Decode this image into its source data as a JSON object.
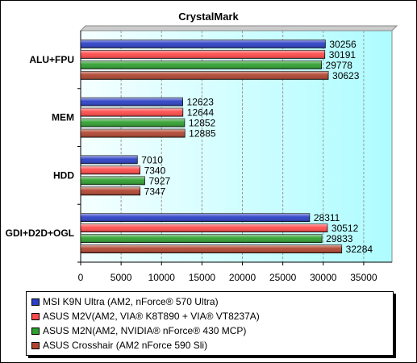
{
  "chart_data": {
    "type": "bar",
    "orientation": "horizontal",
    "title": "CrystalMark",
    "categories": [
      "ALU+FPU",
      "MEM",
      "HDD",
      "GDI+D2D+OGL"
    ],
    "series": [
      {
        "name": "MSI K9N Ultra (AM2, nForce® 570 Ultra)",
        "values": [
          30256,
          12623,
          7010,
          28311
        ],
        "color": "#2b3fc6"
      },
      {
        "name": "ASUS M2V(AM2, VIA® K8T890 + VIA® VT8237A)",
        "values": [
          30191,
          12644,
          7340,
          30512
        ],
        "color": "#ff4a4a"
      },
      {
        "name": "ASUS M2N(AM2, NVIDIA® nForce® 430 MCP)",
        "values": [
          29778,
          12852,
          7927,
          29833
        ],
        "color": "#2fa02f"
      },
      {
        "name": "ASUS  Crosshair (AM2 nForce 590 Sli)",
        "values": [
          30623,
          12885,
          7347,
          32284
        ],
        "color": "#b04530"
      }
    ],
    "x_ticks": [
      "0",
      "5000",
      "10000",
      "15000",
      "20000",
      "25000",
      "30000",
      "35000"
    ],
    "xlim": [
      0,
      38500
    ],
    "grid": true,
    "legend_position": "bottom"
  }
}
